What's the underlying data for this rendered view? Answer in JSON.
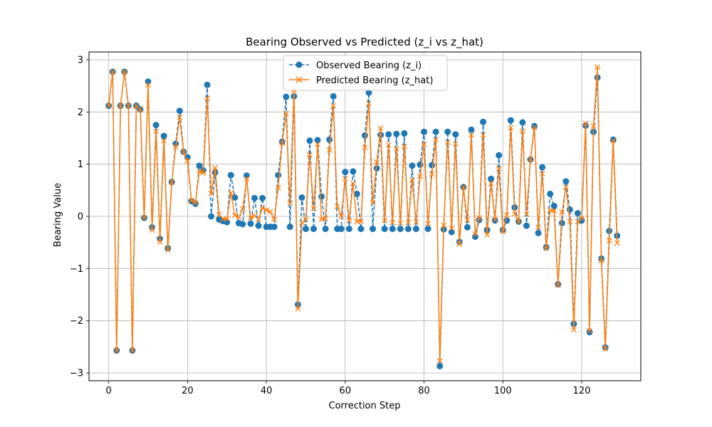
{
  "chart_data": {
    "type": "line",
    "title": "Bearing Observed vs Predicted (z_i vs z_hat)",
    "xlabel": "Correction Step",
    "ylabel": "Bearing Value",
    "xlim": [
      -5,
      135
    ],
    "ylim": [
      -3.15,
      3.15
    ],
    "xticks": [
      0,
      20,
      40,
      60,
      80,
      100,
      120
    ],
    "yticks": [
      -3,
      -2,
      -1,
      0,
      1,
      2,
      3
    ],
    "ytick_labels": [
      "−3",
      "−2",
      "−1",
      "0",
      "1",
      "2",
      "3"
    ],
    "grid": true,
    "legend_position": "top-center",
    "x": [
      0,
      1,
      2,
      3,
      4,
      5,
      6,
      7,
      8,
      9,
      10,
      11,
      12,
      13,
      14,
      15,
      16,
      17,
      18,
      19,
      20,
      21,
      22,
      23,
      24,
      25,
      26,
      27,
      28,
      29,
      30,
      31,
      32,
      33,
      34,
      35,
      36,
      37,
      38,
      39,
      40,
      41,
      42,
      43,
      44,
      45,
      46,
      47,
      48,
      49,
      50,
      51,
      52,
      53,
      54,
      55,
      56,
      57,
      58,
      59,
      60,
      61,
      62,
      63,
      64,
      65,
      66,
      67,
      68,
      69,
      70,
      71,
      72,
      73,
      74,
      75,
      76,
      77,
      78,
      79,
      80,
      81,
      82,
      83,
      84,
      85,
      86,
      87,
      88,
      89,
      90,
      91,
      92,
      93,
      94,
      95,
      96,
      97,
      98,
      99,
      100,
      101,
      102,
      103,
      104,
      105,
      106,
      107,
      108,
      109,
      110,
      111,
      112,
      113,
      114,
      115,
      116,
      117,
      118,
      119,
      120,
      121,
      122,
      123,
      124,
      125,
      126,
      127,
      128,
      129
    ],
    "series": [
      {
        "name": "Observed Bearing (z_i)",
        "color": "#1f77b4",
        "linestyle": "dashed",
        "marker": "circle",
        "values": [
          2.12,
          2.77,
          -2.57,
          2.12,
          2.77,
          2.12,
          -2.57,
          2.12,
          2.05,
          -0.03,
          2.58,
          -0.21,
          1.75,
          -0.43,
          1.54,
          -0.61,
          0.66,
          1.39,
          2.02,
          1.24,
          1.13,
          0.29,
          0.24,
          0.97,
          0.88,
          2.52,
          0.0,
          0.84,
          -0.06,
          -0.09,
          -0.11,
          0.79,
          0.36,
          -0.13,
          -0.15,
          0.78,
          -0.14,
          0.35,
          -0.18,
          0.35,
          -0.2,
          -0.2,
          -0.2,
          0.79,
          1.43,
          2.29,
          -0.2,
          2.3,
          -1.69,
          0.36,
          -0.24,
          1.45,
          -0.24,
          1.46,
          0.38,
          -0.24,
          1.47,
          2.3,
          -0.24,
          -0.24,
          0.85,
          -0.24,
          0.86,
          0.43,
          -0.24,
          1.55,
          2.37,
          -0.24,
          0.92,
          1.56,
          -0.24,
          1.57,
          -0.24,
          1.58,
          -0.24,
          1.59,
          -0.24,
          0.97,
          -0.24,
          0.99,
          1.62,
          -0.24,
          0.98,
          1.62,
          -2.87,
          -0.25,
          1.62,
          -0.3,
          1.57,
          -0.49,
          0.56,
          -0.21,
          1.66,
          -0.39,
          -0.07,
          1.81,
          -0.26,
          0.72,
          -0.08,
          1.17,
          -0.26,
          -0.08,
          1.84,
          0.17,
          -0.1,
          1.8,
          -0.18,
          1.09,
          1.73,
          -0.32,
          0.94,
          -0.59,
          0.43,
          0.2,
          -1.3,
          -0.13,
          0.67,
          0.13,
          -2.06,
          0.06,
          -0.08,
          1.74,
          -2.22,
          1.62,
          2.66,
          -0.81,
          -2.51,
          -0.28,
          1.47,
          -0.37
        ]
      },
      {
        "name": "Predicted Bearing (z_hat)",
        "color": "#ff7f0e",
        "linestyle": "solid",
        "marker": "x",
        "values": [
          2.12,
          2.77,
          -2.57,
          2.12,
          2.77,
          2.12,
          -2.57,
          2.12,
          2.05,
          -0.03,
          2.52,
          -0.26,
          1.63,
          -0.49,
          1.45,
          -0.64,
          0.65,
          1.33,
          1.9,
          1.23,
          1.06,
          0.3,
          0.26,
          0.86,
          0.83,
          2.26,
          0.44,
          0.93,
          0.04,
          -0.05,
          -0.05,
          0.45,
          0.02,
          -0.02,
          0.14,
          0.72,
          -0.03,
          0.01,
          -0.06,
          0.16,
          0.12,
          0.09,
          -0.06,
          0.55,
          1.4,
          1.97,
          0.25,
          2.42,
          -1.77,
          -0.12,
          -0.06,
          1.18,
          0.15,
          1.38,
          -0.06,
          -0.04,
          1.27,
          2.12,
          0.19,
          0.0,
          0.72,
          -0.08,
          0.63,
          -0.1,
          -0.1,
          1.32,
          2.16,
          0.26,
          1.04,
          1.69,
          -0.08,
          1.37,
          -0.12,
          1.3,
          -0.13,
          1.34,
          -0.12,
          0.7,
          -0.11,
          0.77,
          1.38,
          -0.14,
          0.81,
          1.47,
          -2.77,
          -0.17,
          1.42,
          -0.23,
          1.39,
          -0.53,
          0.56,
          -0.07,
          1.56,
          -0.34,
          -0.03,
          1.56,
          -0.35,
          0.63,
          -0.06,
          0.92,
          -0.29,
          0.03,
          1.7,
          0.05,
          -0.1,
          1.63,
          0.04,
          1.09,
          1.7,
          -0.21,
          0.82,
          -0.62,
          0.12,
          0.11,
          -1.32,
          0.08,
          0.56,
          -0.1,
          -2.17,
          -0.1,
          -0.04,
          1.78,
          -2.19,
          1.73,
          2.86,
          -0.85,
          -2.54,
          -0.46,
          1.45,
          -0.51
        ]
      }
    ]
  }
}
